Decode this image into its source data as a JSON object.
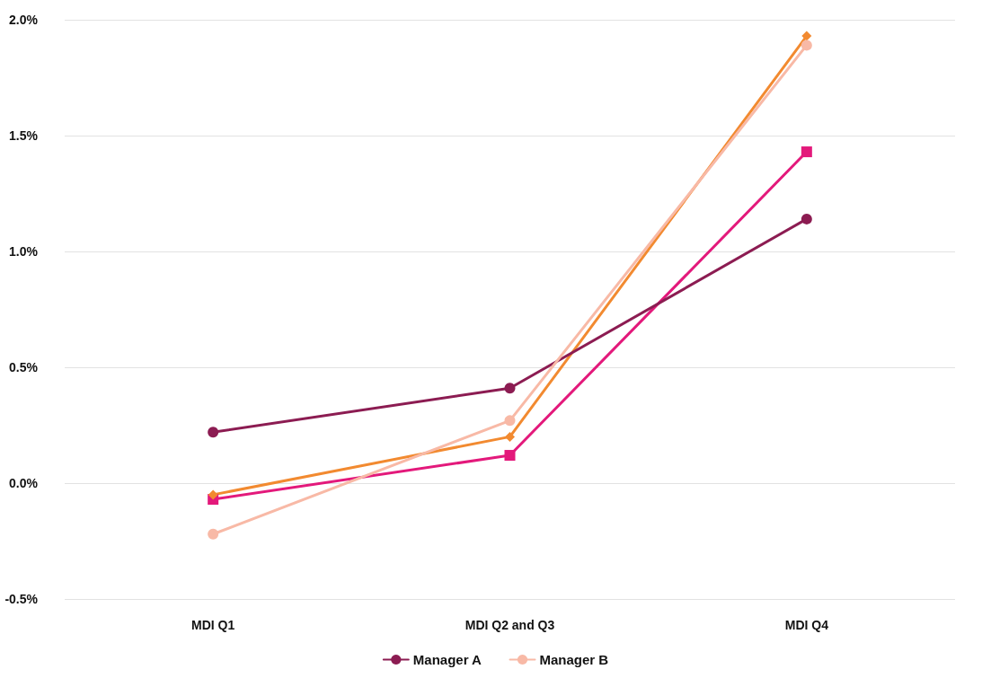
{
  "chart_data": {
    "type": "line",
    "categories": [
      "MDI Q1",
      "MDI Q2 and Q3",
      "MDI Q4"
    ],
    "series": [
      {
        "color": "#e3197b",
        "marker": "square",
        "values": [
          -0.07,
          0.12,
          1.43
        ]
      },
      {
        "color": "#f28a30",
        "marker": "diamond",
        "values": [
          -0.05,
          0.2,
          1.93
        ]
      },
      {
        "name": "Manager A",
        "color": "#8c1c52",
        "marker": "circle",
        "values": [
          0.22,
          0.41,
          1.14
        ]
      },
      {
        "name": "Manager B",
        "color": "#f8b9a6",
        "marker": "circle",
        "values": [
          -0.22,
          0.27,
          1.89
        ]
      }
    ],
    "ylim": [
      -0.5,
      2
    ],
    "yticks": [
      {
        "value": -0.5,
        "label": "-0.5%"
      },
      {
        "value": 0,
        "label": "0.0%"
      },
      {
        "value": 0.5,
        "label": "0.5%"
      },
      {
        "value": 1,
        "label": "1.0%"
      },
      {
        "value": 1.5,
        "label": "1.5%"
      },
      {
        "value": 2,
        "label": "2.0%"
      }
    ],
    "grid": "y",
    "legend": "bottom"
  }
}
